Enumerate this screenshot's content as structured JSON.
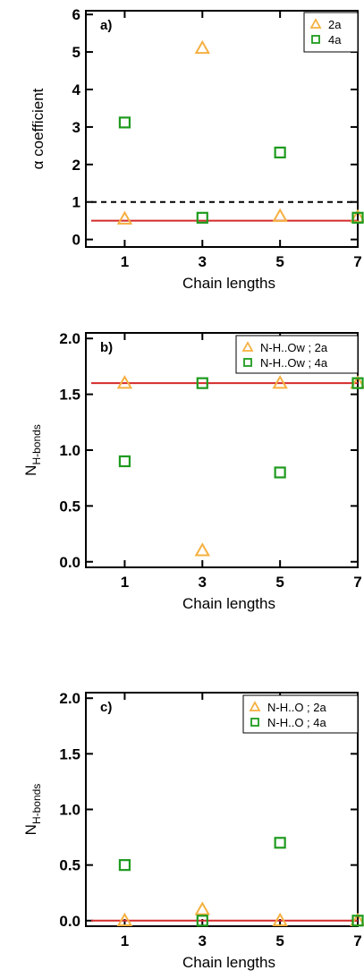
{
  "colors": {
    "series_2a": "#f5b041",
    "series_4a": "#1e9b1e",
    "fit_line": "#d42a2a",
    "reference_line": "#000000"
  },
  "chart_data": [
    {
      "type": "scatter",
      "panel_label": "a)",
      "xlabel": "Chain lengths",
      "ylabel": "α coefficient",
      "xlim": [
        0,
        7
      ],
      "ylim": [
        -0.2,
        6.1
      ],
      "xticks": [
        1,
        3,
        5,
        7
      ],
      "xtick_labels": [
        "1",
        "3",
        "5",
        "7"
      ],
      "yticks": [
        0,
        1,
        2,
        3,
        4,
        5,
        6
      ],
      "ytick_labels": [
        "0",
        "1",
        "2",
        "3",
        "4",
        "5",
        "6"
      ],
      "legend_position": "top-right",
      "series": [
        {
          "name": "2a",
          "marker": "triangle",
          "color": "#f5b041",
          "x": [
            1,
            3,
            5,
            7
          ],
          "y": [
            0.55,
            5.1,
            0.62,
            0.6
          ]
        },
        {
          "name": "4a",
          "marker": "square",
          "color": "#1e9b1e",
          "x": [
            1,
            3,
            5,
            7
          ],
          "y": [
            3.12,
            0.58,
            2.32,
            0.58
          ]
        }
      ],
      "hlines": [
        {
          "y": 0.5,
          "style": "solid",
          "color": "#d42a2a"
        },
        {
          "y": 1.0,
          "style": "dashed",
          "color": "#000000"
        }
      ]
    },
    {
      "type": "scatter",
      "panel_label": "b)",
      "xlabel": "Chain lengths",
      "ylabel_main": "N",
      "ylabel_sub": "H-bonds",
      "xlim": [
        0,
        7
      ],
      "ylim": [
        -0.05,
        2.05
      ],
      "xticks": [
        1,
        3,
        5,
        7
      ],
      "xtick_labels": [
        "1",
        "3",
        "5",
        "7"
      ],
      "yticks": [
        0,
        0.5,
        1,
        1.5,
        2
      ],
      "ytick_labels": [
        "0.0",
        "0.5",
        "1.0",
        "1.5",
        "2.0"
      ],
      "legend_position": "top-right",
      "series": [
        {
          "name": "N-H..Ow ; 2a",
          "marker": "triangle",
          "color": "#f5b041",
          "x": [
            1,
            3,
            5,
            7
          ],
          "y": [
            1.6,
            0.1,
            1.6,
            1.6
          ]
        },
        {
          "name": "N-H..Ow ; 4a",
          "marker": "square",
          "color": "#1e9b1e",
          "x": [
            1,
            3,
            5,
            7
          ],
          "y": [
            0.9,
            1.6,
            0.8,
            1.6
          ]
        }
      ],
      "hlines": [
        {
          "y": 1.6,
          "style": "solid",
          "color": "#d42a2a"
        }
      ]
    },
    {
      "type": "scatter",
      "panel_label": "c)",
      "xlabel": "Chain lengths",
      "ylabel_main": "N",
      "ylabel_sub": "H-bonds",
      "xlim": [
        0,
        7
      ],
      "ylim": [
        -0.05,
        2.05
      ],
      "xticks": [
        1,
        3,
        5,
        7
      ],
      "xtick_labels": [
        "1",
        "3",
        "5",
        "7"
      ],
      "yticks": [
        0,
        0.5,
        1,
        1.5,
        2
      ],
      "ytick_labels": [
        "0.0",
        "0.5",
        "1.0",
        "1.5",
        "2.0"
      ],
      "legend_position": "top-right",
      "series": [
        {
          "name": "N-H..O ; 2a",
          "marker": "triangle",
          "color": "#f5b041",
          "x": [
            1,
            3,
            5,
            7
          ],
          "y": [
            0.0,
            0.1,
            0.0,
            0.0
          ]
        },
        {
          "name": "N-H..O ; 4a",
          "marker": "square",
          "color": "#1e9b1e",
          "x": [
            1,
            3,
            5,
            7
          ],
          "y": [
            0.5,
            0.0,
            0.7,
            0.0
          ]
        }
      ],
      "hlines": [
        {
          "y": 0.0,
          "style": "solid",
          "color": "#d42a2a"
        }
      ]
    }
  ]
}
